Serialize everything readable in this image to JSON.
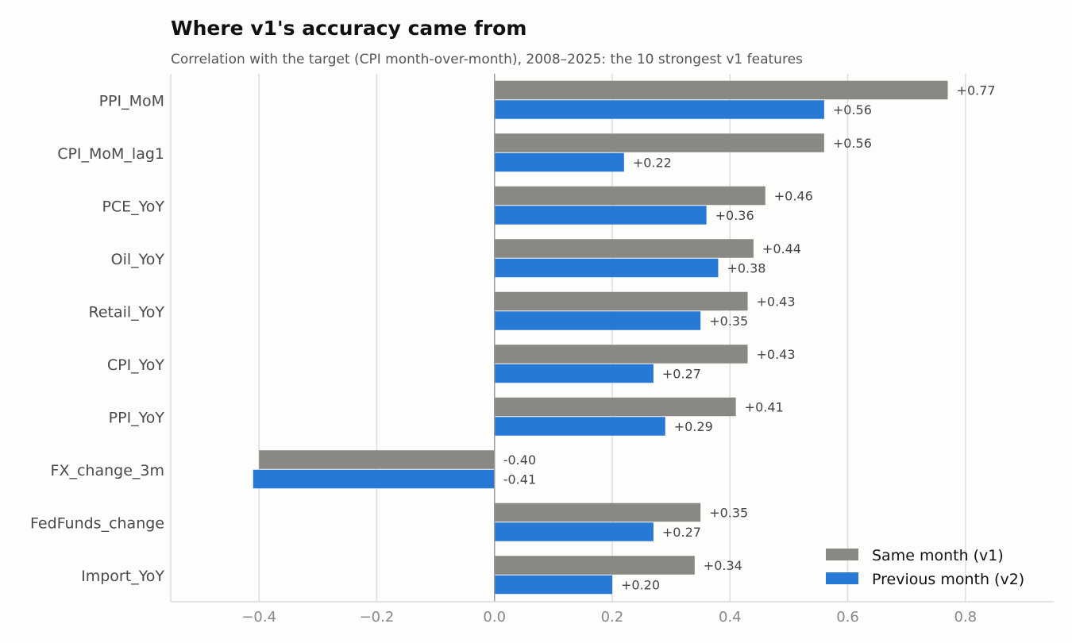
{
  "chart_data": {
    "type": "bar",
    "orientation": "horizontal",
    "title": "Where v1's accuracy came from",
    "subtitle": "Correlation with the target (CPI month-over-month), 2008–2025: the 10 strongest v1 features",
    "xlabel": "",
    "ylabel": "",
    "xlim": [
      -0.55,
      0.95
    ],
    "x_ticks": [
      -0.4,
      -0.2,
      0.0,
      0.2,
      0.4,
      0.6,
      0.8
    ],
    "x_tick_labels": [
      "−0.4",
      "−0.2",
      "0.0",
      "0.2",
      "0.4",
      "0.6",
      "0.8"
    ],
    "grid": "vertical",
    "legend_position": "bottom-right",
    "categories": [
      "PPI_MoM",
      "CPI_MoM_lag1",
      "PCE_YoY",
      "Oil_YoY",
      "Retail_YoY",
      "CPI_YoY",
      "PPI_YoY",
      "FX_change_3m",
      "FedFunds_change",
      "Import_YoY"
    ],
    "series": [
      {
        "name": "Same month (v1)",
        "color": "#898883",
        "values": [
          0.77,
          0.56,
          0.46,
          0.44,
          0.43,
          0.43,
          0.41,
          -0.4,
          0.35,
          0.34
        ],
        "labels": [
          "+0.77",
          "+0.56",
          "+0.46",
          "+0.44",
          "+0.43",
          "+0.43",
          "+0.41",
          "-0.40",
          "+0.35",
          "+0.34"
        ]
      },
      {
        "name": "Previous month (v2)",
        "color": "#2878d6",
        "values": [
          0.56,
          0.22,
          0.36,
          0.38,
          0.35,
          0.27,
          0.29,
          -0.41,
          0.27,
          0.2
        ],
        "labels": [
          "+0.56",
          "+0.22",
          "+0.36",
          "+0.38",
          "+0.35",
          "+0.27",
          "+0.29",
          "-0.41",
          "+0.27",
          "+0.20"
        ]
      }
    ]
  }
}
